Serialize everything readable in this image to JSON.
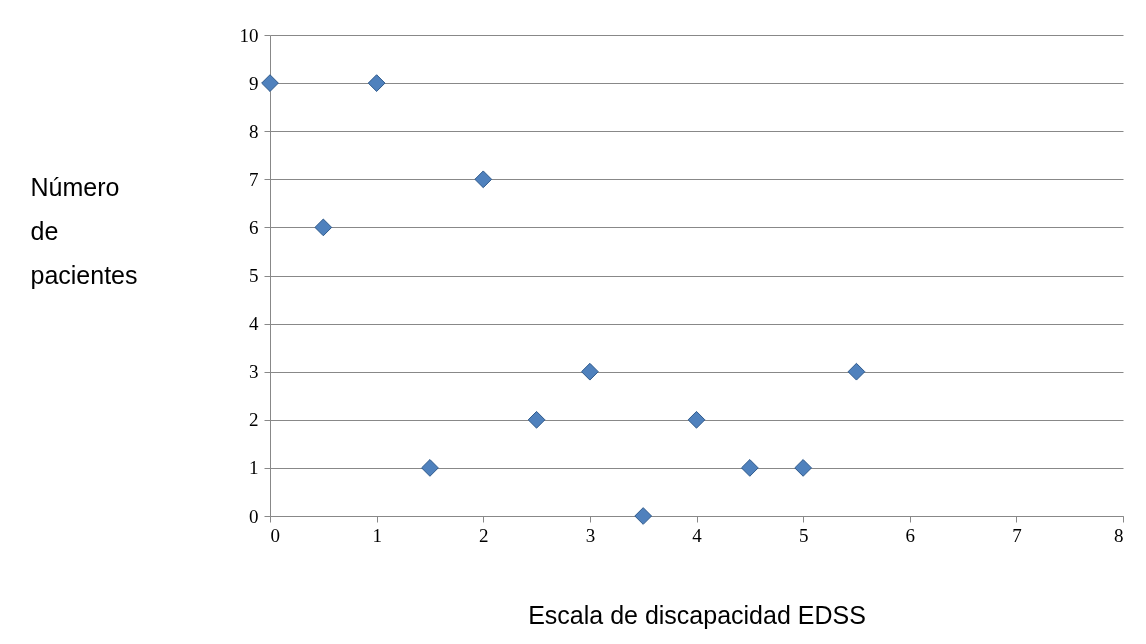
{
  "chart_data": {
    "type": "scatter",
    "xlabel": "Escala de discapacidad EDSS",
    "ylabel": "Número de pacientes",
    "x": [
      0,
      0.5,
      1,
      1.5,
      2,
      2.5,
      3,
      3.5,
      4,
      4.5,
      5,
      5.5
    ],
    "values": [
      9,
      6,
      9,
      1,
      7,
      2,
      3,
      0,
      2,
      1,
      1,
      3
    ],
    "color": "#4f81bd",
    "marker": "diamond",
    "grid": "y",
    "xlim": [
      0,
      8
    ],
    "xticks": [
      0,
      1,
      2,
      3,
      4,
      5,
      6,
      7,
      8
    ],
    "ylim": [
      0,
      10
    ],
    "yticks": [
      0,
      1,
      2,
      3,
      4,
      5,
      6,
      7,
      8,
      9,
      10
    ]
  }
}
